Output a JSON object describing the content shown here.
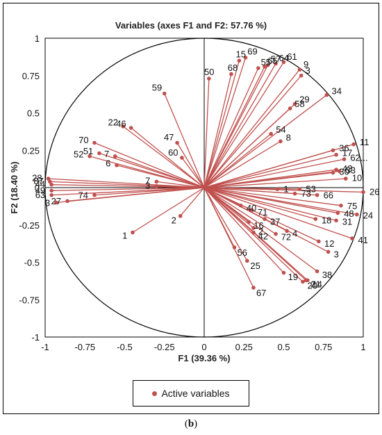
{
  "chart_data": {
    "type": "scatter",
    "title": "Variables (axes F1 and F2: 57.76 %)",
    "xlabel": "F1 (39.36 %)",
    "ylabel": "F2 (18.40 %)",
    "xlim": [
      -1,
      1
    ],
    "ylim": [
      -1,
      1
    ],
    "x_ticks": [
      "-1",
      "-0.75",
      "-0.5",
      "-0.25",
      "0",
      "0.25",
      "0.5",
      "0.75",
      "1"
    ],
    "y_ticks": [
      "1",
      "0.75",
      "0.5",
      "0.25",
      "0",
      "-0.25",
      "-0.5",
      "-0.75",
      "-1"
    ],
    "legend": {
      "position": "bottom",
      "entries": [
        "Active variables"
      ]
    },
    "series": [
      {
        "name": "Active variables",
        "color": "#c0504d",
        "points": [
          {
            "label": "1",
            "x": 0.46,
            "y": -0.01
          },
          {
            "label": "1",
            "x": -0.45,
            "y": -0.3
          },
          {
            "label": "2",
            "x": 0.31,
            "y": -0.27
          },
          {
            "label": "2",
            "x": -0.15,
            "y": -0.19
          },
          {
            "label": "3",
            "x": -0.93,
            "y": -0.1
          },
          {
            "label": "3",
            "x": 0.61,
            "y": 0.75
          },
          {
            "label": "3",
            "x": 0.78,
            "y": -0.43
          },
          {
            "label": "3",
            "x": -0.3,
            "y": 0.01
          },
          {
            "label": "4",
            "x": 0.52,
            "y": -0.29
          },
          {
            "label": "6",
            "x": -0.55,
            "y": 0.15
          },
          {
            "label": "7",
            "x": -0.56,
            "y": 0.21
          },
          {
            "label": "7",
            "x": -0.3,
            "y": 0.04
          },
          {
            "label": "8",
            "x": 0.48,
            "y": 0.31
          },
          {
            "label": "9",
            "x": 0.6,
            "y": 0.79
          },
          {
            "label": "10",
            "x": 0.89,
            "y": 0.06
          },
          {
            "label": "11",
            "x": 0.94,
            "y": 0.29
          },
          {
            "label": "12",
            "x": 0.72,
            "y": -0.36
          },
          {
            "label": "14",
            "x": 0.65,
            "y": -0.62
          },
          {
            "label": "15",
            "x": 0.22,
            "y": 0.85
          },
          {
            "label": "16",
            "x": 0.28,
            "y": -0.23
          },
          {
            "label": "17",
            "x": 0.83,
            "y": 0.22
          },
          {
            "label": "18",
            "x": 0.7,
            "y": -0.21
          },
          {
            "label": "19",
            "x": 0.5,
            "y": -0.57
          },
          {
            "label": "20",
            "x": 0.62,
            "y": -0.63
          },
          {
            "label": "21",
            "x": 0.64,
            "y": -0.62
          },
          {
            "label": "22",
            "x": -0.51,
            "y": 0.41
          },
          {
            "label": "24",
            "x": 0.96,
            "y": -0.18
          },
          {
            "label": "25",
            "x": 0.27,
            "y": -0.49
          },
          {
            "label": "26",
            "x": 1.0,
            "y": -0.03
          },
          {
            "label": "27",
            "x": -0.86,
            "y": -0.09
          },
          {
            "label": "28",
            "x": -0.98,
            "y": 0.06
          },
          {
            "label": "29",
            "x": 0.57,
            "y": 0.56
          },
          {
            "label": "30",
            "x": 0.81,
            "y": 0.1
          },
          {
            "label": "31",
            "x": 0.83,
            "y": -0.22
          },
          {
            "label": "33",
            "x": 0.85,
            "y": 0.11
          },
          {
            "label": "34",
            "x": 0.77,
            "y": 0.62
          },
          {
            "label": "36",
            "x": 0.81,
            "y": 0.25
          },
          {
            "label": "37",
            "x": 0.38,
            "y": -0.21
          },
          {
            "label": "38",
            "x": 0.71,
            "y": -0.56
          },
          {
            "label": "40",
            "x": 0.23,
            "y": -0.12
          },
          {
            "label": "41",
            "x": 0.93,
            "y": -0.34
          },
          {
            "label": "42",
            "x": 0.31,
            "y": -0.3
          },
          {
            "label": "43",
            "x": 0.83,
            "y": 0.12
          },
          {
            "label": "44",
            "x": -0.96,
            "y": 0.02
          },
          {
            "label": "46",
            "x": -0.46,
            "y": 0.4
          },
          {
            "label": "47",
            "x": -0.17,
            "y": 0.3
          },
          {
            "label": "48",
            "x": 0.84,
            "y": -0.17
          },
          {
            "label": "49",
            "x": -0.96,
            "y": -0.02
          },
          {
            "label": "50",
            "x": 0.03,
            "y": 0.73
          },
          {
            "label": "51",
            "x": -0.66,
            "y": 0.23
          },
          {
            "label": "52",
            "x": -0.72,
            "y": 0.21
          },
          {
            "label": "53",
            "x": 0.6,
            "y": -0.01
          },
          {
            "label": "54",
            "x": 0.42,
            "y": 0.36
          },
          {
            "label": "55",
            "x": 0.34,
            "y": 0.8
          },
          {
            "label": "56",
            "x": 0.19,
            "y": -0.4
          },
          {
            "label": "57",
            "x": 0.4,
            "y": 0.82
          },
          {
            "label": "58",
            "x": 0.54,
            "y": 0.53
          },
          {
            "label": "59",
            "x": -0.25,
            "y": 0.63
          },
          {
            "label": "60",
            "x": -0.14,
            "y": 0.2
          },
          {
            "label": "61",
            "x": 0.5,
            "y": 0.84
          },
          {
            "label": "62...",
            "x": 0.88,
            "y": 0.19
          },
          {
            "label": "63",
            "x": -0.96,
            "y": -0.05
          },
          {
            "label": "64",
            "x": 0.45,
            "y": 0.83
          },
          {
            "label": "65",
            "x": 0.38,
            "y": 0.81
          },
          {
            "label": "66",
            "x": 0.71,
            "y": -0.05
          },
          {
            "label": "67",
            "x": 0.31,
            "y": -0.67
          },
          {
            "label": "68",
            "x": 0.17,
            "y": 0.76
          },
          {
            "label": "69",
            "x": 0.26,
            "y": 0.87
          },
          {
            "label": "70",
            "x": -0.69,
            "y": 0.3
          },
          {
            "label": "71",
            "x": 0.3,
            "y": -0.15
          },
          {
            "label": "72",
            "x": 0.45,
            "y": -0.31
          },
          {
            "label": "73",
            "x": 0.57,
            "y": -0.04
          },
          {
            "label": "74",
            "x": -0.69,
            "y": -0.05
          },
          {
            "label": "75",
            "x": 0.86,
            "y": -0.12
          },
          {
            "label": "87",
            "x": -0.97,
            "y": 0.04
          }
        ]
      }
    ]
  },
  "legend": {
    "label": "Active variables"
  },
  "caption": {
    "prefix": "(",
    "bold": "b",
    "suffix": ")"
  }
}
